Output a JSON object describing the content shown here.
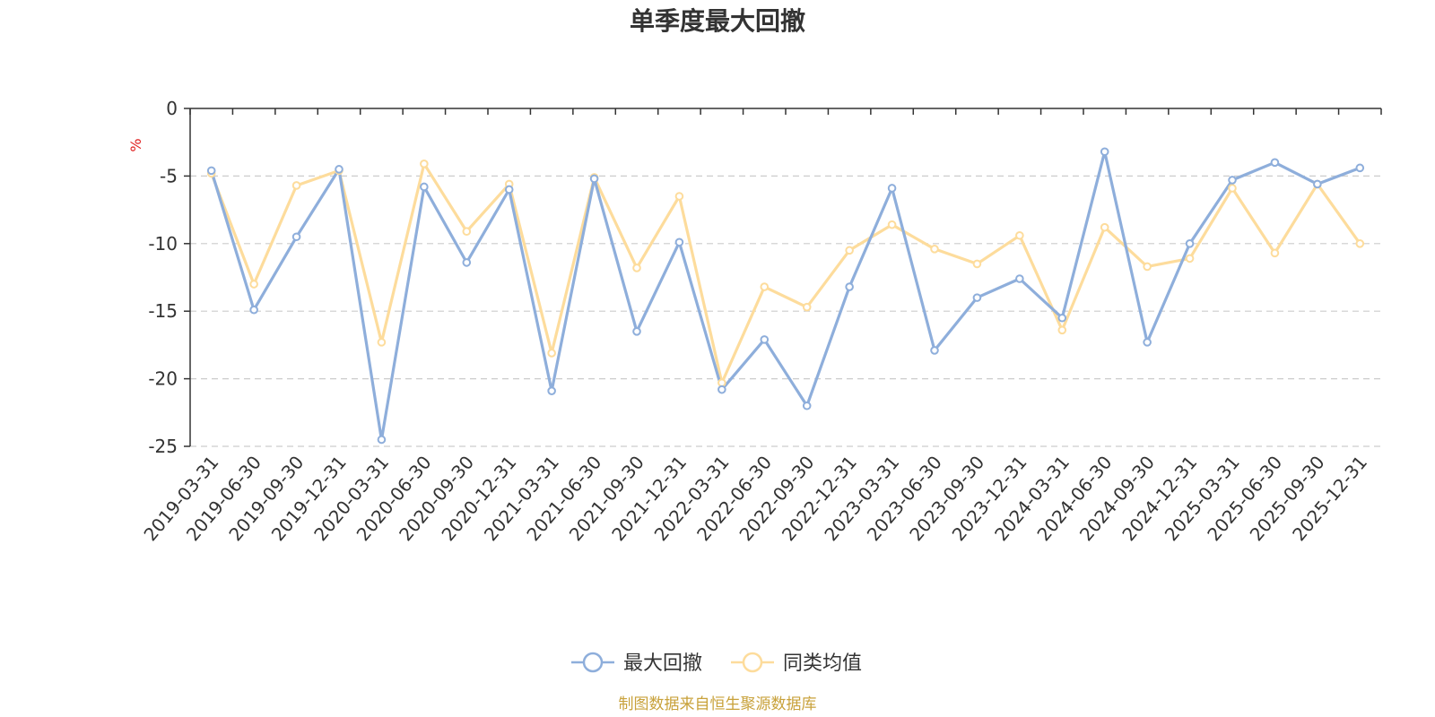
{
  "chart_data": {
    "type": "line",
    "title": "单季度最大回撤",
    "ylabel": "%",
    "ylim": [
      -25,
      0
    ],
    "yticks": [
      "0",
      "-5",
      "-10",
      "-15",
      "-20",
      "-25"
    ],
    "grid": true,
    "legend_position": "bottom-center",
    "categories": [
      "2019-03-31",
      "2019-06-30",
      "2019-09-30",
      "2019-12-31",
      "2020-03-31",
      "2020-06-30",
      "2020-09-30",
      "2020-12-31",
      "2021-03-31",
      "2021-06-30",
      "2021-09-30",
      "2021-12-31",
      "2022-03-31",
      "2022-06-30",
      "2022-09-30",
      "2022-12-31",
      "2023-03-31",
      "2023-06-30",
      "2023-09-30",
      "2023-12-31",
      "2024-03-31",
      "2024-06-30",
      "2024-09-30",
      "2024-12-31",
      "2025-03-31",
      "2025-06-30",
      "2025-09-30",
      "2025-12-31"
    ],
    "series": [
      {
        "name": "最大回撤",
        "color": "#8eaedb",
        "values": [
          -4.6,
          -14.9,
          -9.5,
          -4.5,
          -24.5,
          -5.8,
          -11.4,
          -6.0,
          -20.9,
          -5.2,
          -16.5,
          -9.9,
          -20.8,
          -17.1,
          -22.0,
          -13.2,
          -5.9,
          -17.9,
          -14.0,
          -12.6,
          -15.5,
          -3.2,
          -17.3,
          -10.0,
          -5.3,
          -4.0,
          -5.6,
          -4.4
        ]
      },
      {
        "name": "同类均值",
        "color": "#fddc9c",
        "values": [
          -4.8,
          -13.0,
          -5.7,
          -4.6,
          -17.3,
          -4.1,
          -9.1,
          -5.6,
          -18.1,
          -5.1,
          -11.8,
          -6.5,
          -20.3,
          -13.2,
          -14.7,
          -10.5,
          -8.6,
          -10.4,
          -11.5,
          -9.4,
          -16.4,
          -8.8,
          -11.7,
          -11.1,
          -5.9,
          -10.7,
          -5.6,
          -10.0
        ]
      }
    ]
  },
  "legend": {
    "items": [
      {
        "label": "最大回撤",
        "color": "#8eaedb"
      },
      {
        "label": "同类均值",
        "color": "#fddc9c"
      }
    ]
  },
  "footer": {
    "source_text": "制图数据来自恒生聚源数据库",
    "source_color": "#c8a13a"
  },
  "colors": {
    "axis": "#333333",
    "grid": "#cccccc",
    "unit": "#e02020"
  }
}
